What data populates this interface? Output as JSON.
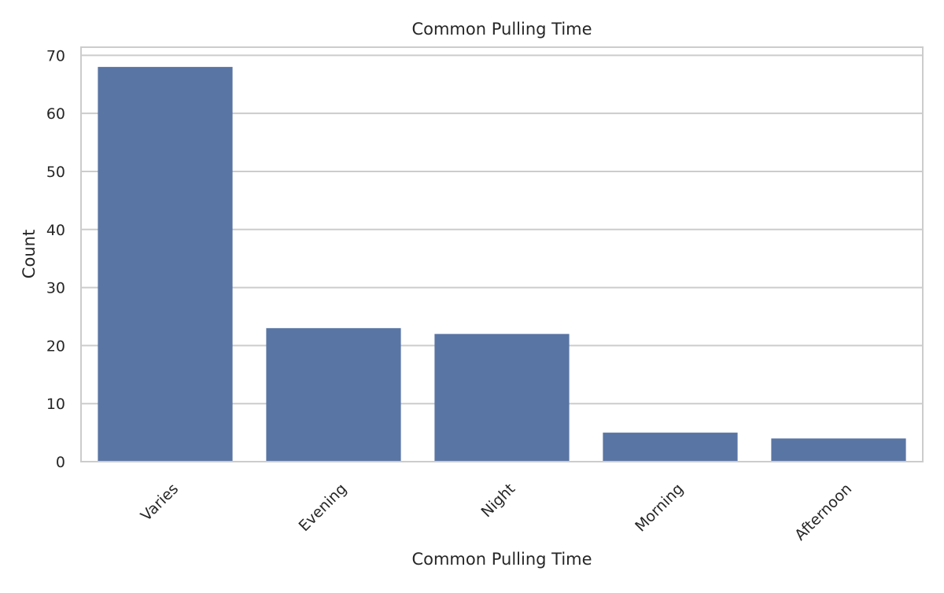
{
  "chart_data": {
    "type": "bar",
    "title": "Common Pulling Time",
    "xlabel": "Common Pulling Time",
    "ylabel": "Count",
    "categories": [
      "Varies",
      "Evening",
      "Night",
      "Morning",
      "Afternoon"
    ],
    "values": [
      68,
      23,
      22,
      5,
      4
    ],
    "ylim": [
      0,
      71.4
    ],
    "yticks": [
      0,
      10,
      20,
      30,
      40,
      50,
      60,
      70
    ],
    "grid": "y-axis horizontal lines",
    "legend": "none",
    "bar_color": "#5975a4",
    "grid_color": "#cccccc",
    "spine_color": "#cccccc"
  }
}
